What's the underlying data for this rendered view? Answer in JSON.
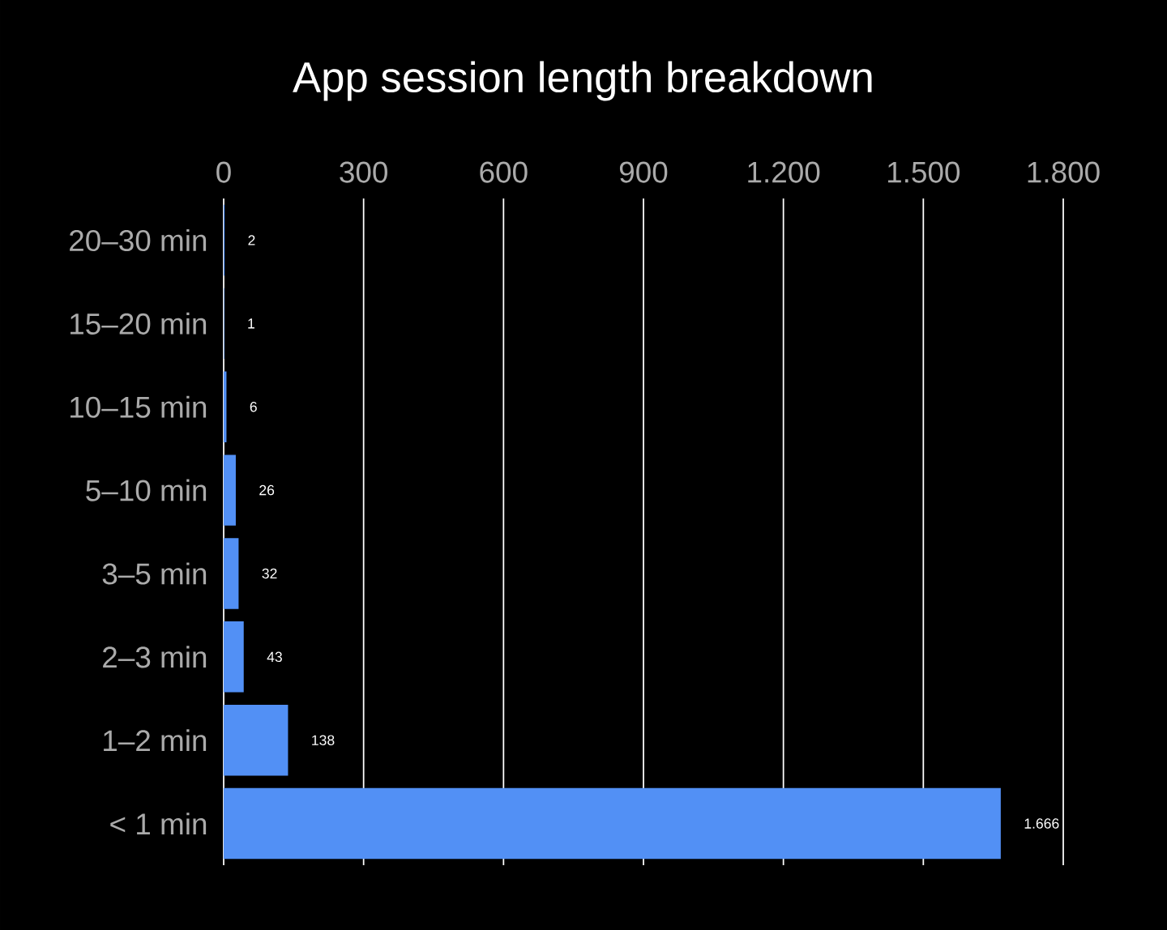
{
  "chart_data": {
    "type": "bar",
    "orientation": "horizontal",
    "title": "App session length breakdown",
    "categories": [
      "20–30 min",
      "15–20 min",
      "10–15 min",
      "5–10 min",
      "3–5 min",
      "2–3 min",
      "1–2 min",
      "< 1 min"
    ],
    "values": [
      2,
      1,
      6,
      26,
      32,
      43,
      138,
      1666
    ],
    "value_labels": [
      "2",
      "1",
      "6",
      "26",
      "32",
      "43",
      "138",
      "1.666"
    ],
    "color": "#5290f5",
    "xlim": [
      0,
      1800
    ],
    "xticks": [
      0,
      300,
      600,
      900,
      {
        "value": 1200,
        "label": "1.200"
      },
      {
        "value": 1500,
        "label": "1.500"
      },
      {
        "value": 1800,
        "label": "1.800"
      }
    ],
    "grid": "x"
  }
}
